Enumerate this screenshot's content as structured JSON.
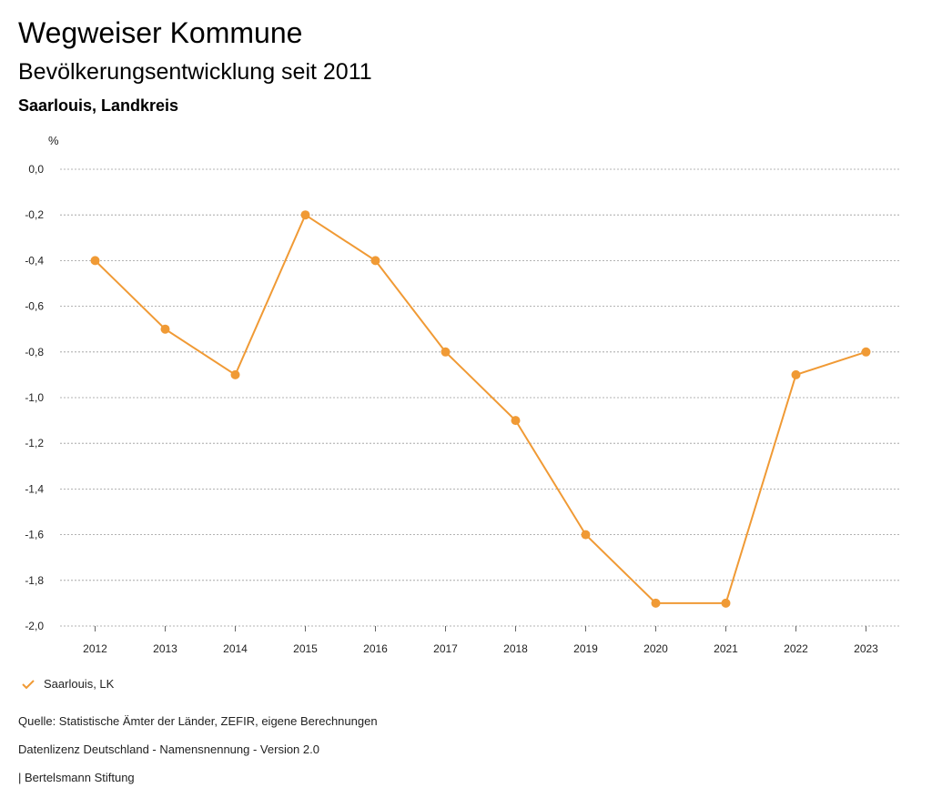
{
  "header": {
    "title": "Wegweiser Kommune",
    "subtitle": "Bevölkerungsentwicklung seit 2011",
    "region": "Saarlouis, Landkreis"
  },
  "legend": {
    "label": "Saarlouis, LK",
    "icon": "check-icon"
  },
  "footer": {
    "source": "Quelle: Statistische Ämter der Länder, ZEFIR, eigene Berechnungen",
    "license": "Datenlizenz Deutschland - Namensnennung - Version 2.0",
    "org": "| Bertelsmann Stiftung"
  },
  "colors": {
    "series": "#f09a35",
    "grid": "#9a9a9a"
  },
  "chart_data": {
    "type": "line",
    "ylabel": "%",
    "x": [
      "2012",
      "2013",
      "2014",
      "2015",
      "2016",
      "2017",
      "2018",
      "2019",
      "2020",
      "2021",
      "2022",
      "2023"
    ],
    "series": [
      {
        "name": "Saarlouis, LK",
        "values": [
          -0.4,
          -0.7,
          -0.9,
          -0.2,
          -0.4,
          -0.8,
          -1.1,
          -1.6,
          -1.9,
          -1.9,
          -0.9,
          -0.8
        ]
      }
    ],
    "ylim": [
      -2.0,
      0.0
    ],
    "yticks": [
      "0,0",
      "-0,2",
      "-0,4",
      "-0,6",
      "-0,8",
      "-1,0",
      "-1,2",
      "-1,4",
      "-1,6",
      "-1,8",
      "-2,0"
    ],
    "grid": true,
    "legend": "bottom-left"
  }
}
